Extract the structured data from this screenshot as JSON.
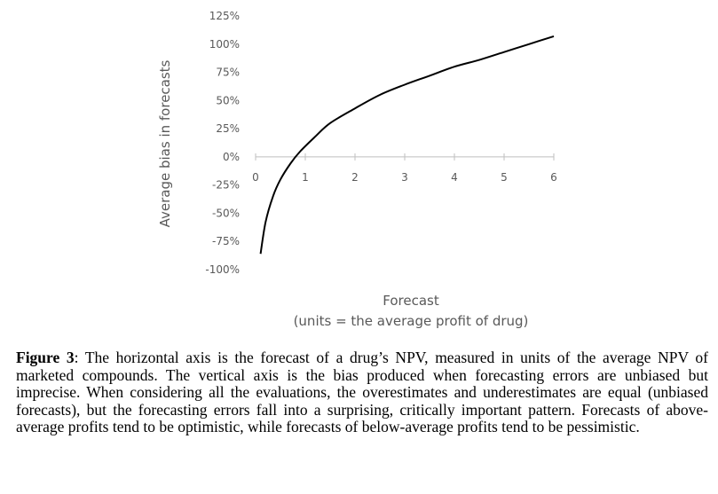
{
  "chart_data": {
    "type": "line",
    "ylabel": "Average bias in forecasts",
    "xlabel": "Forecast",
    "xlabel_sub": "(units = the average profit of drug)",
    "x_ticks": [
      "0",
      "1",
      "2",
      "3",
      "4",
      "5",
      "6"
    ],
    "y_ticks": [
      "125%",
      "100%",
      "75%",
      "50%",
      "25%",
      "0%",
      "-25%",
      "-50%",
      "-75%",
      "-100%"
    ],
    "y_tick_values": [
      125,
      100,
      75,
      50,
      25,
      0,
      -25,
      -50,
      -75,
      -100
    ],
    "xlim": [
      0,
      6
    ],
    "ylim": [
      -100,
      125
    ],
    "grid": false,
    "series": [
      {
        "name": "Average bias",
        "x": [
          0.1,
          0.2,
          0.35,
          0.5,
          0.7,
          0.9,
          1.2,
          1.5,
          2,
          2.5,
          3,
          3.5,
          4,
          4.5,
          5,
          5.5,
          6
        ],
        "values": [
          -86,
          -58,
          -35,
          -20,
          -6,
          5,
          18,
          30,
          43,
          55,
          64,
          72,
          80,
          86,
          93,
          100,
          107
        ]
      }
    ]
  },
  "caption": {
    "label": "Figure 3",
    "text": ": The horizontal axis is the forecast of a drug’s NPV, measured in units of the average NPV of marketed compounds. The vertical axis is the bias produced when forecasting errors are unbiased but imprecise. When considering all the evaluations, the overestimates and underestimates are equal (unbiased forecasts), but the forecasting errors fall into a surprising, critically important pattern. Forecasts of above-average profits tend to be optimistic, while forecasts of below-average profits tend to be pessimistic."
  },
  "colors": {
    "line": "#000000",
    "axis": "#bfbfbf",
    "text": "#595959"
  }
}
